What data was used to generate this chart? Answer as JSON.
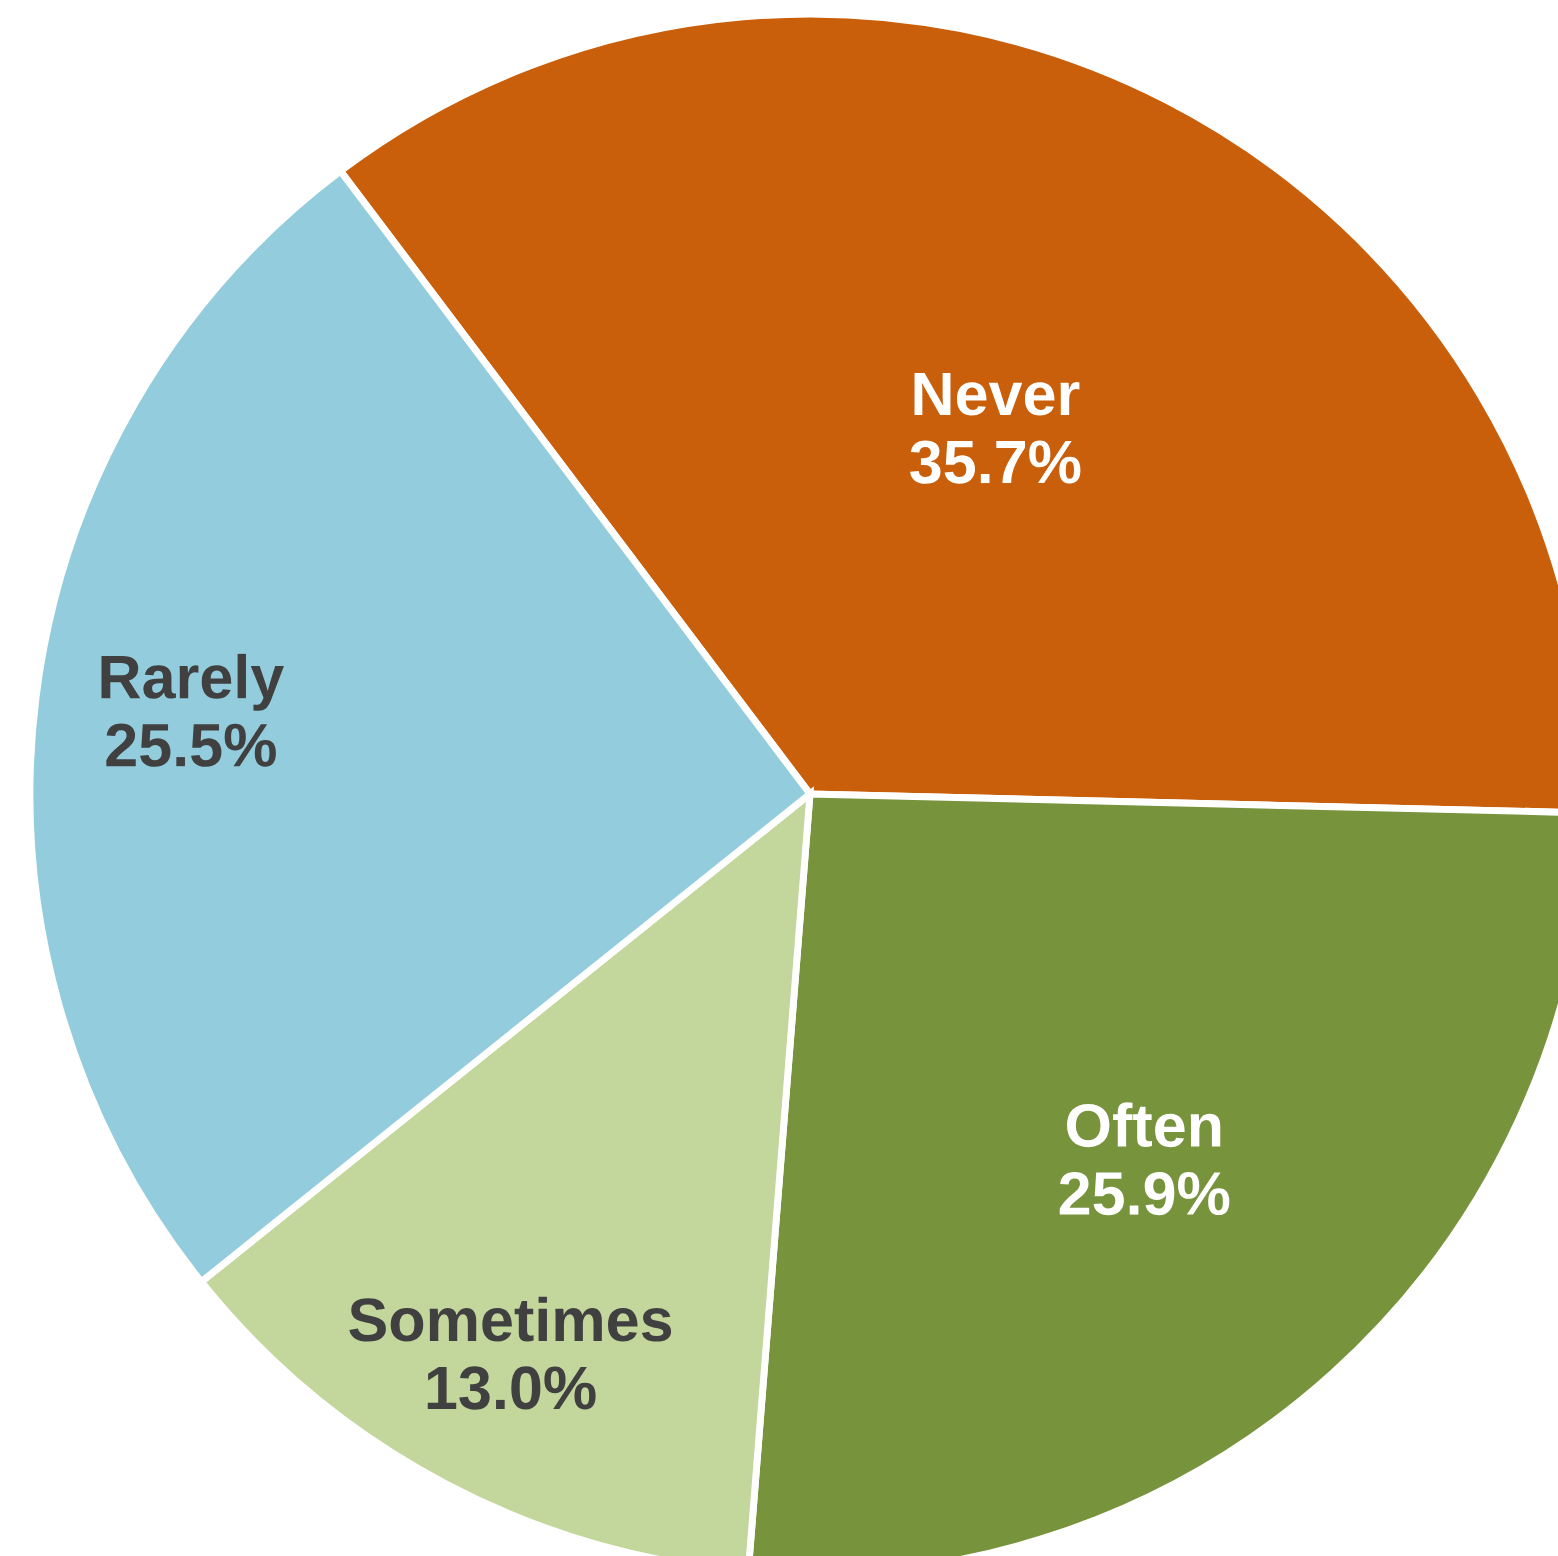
{
  "chart_data": {
    "type": "pie",
    "categories": [
      "Never",
      "Often",
      "Sometimes",
      "Rarely"
    ],
    "values": [
      35.7,
      25.9,
      13.0,
      25.5
    ],
    "colors": [
      "#c95f0a",
      "#77933c",
      "#c3d69b",
      "#93cddd"
    ],
    "value_labels": [
      "35.7%",
      "25.9%",
      "13.0%",
      "25.5%"
    ]
  }
}
